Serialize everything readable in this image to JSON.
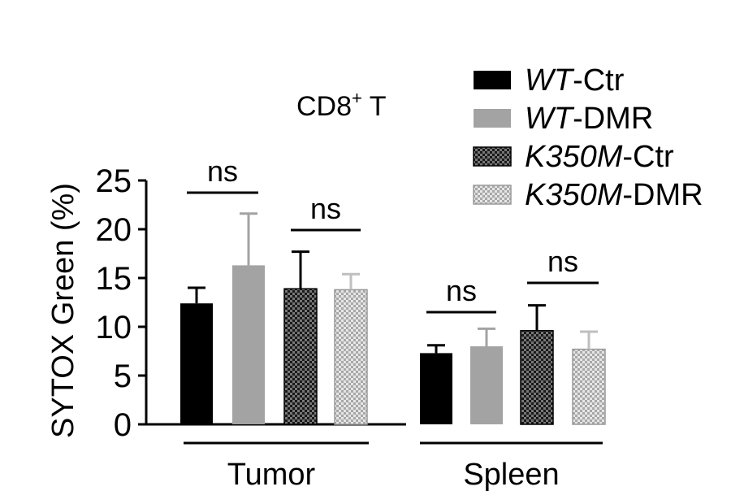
{
  "chart_data": {
    "type": "bar",
    "title": "CD8",
    "title_superscript": "+",
    "title_suffix": " T",
    "ylabel": "SYTOX Green (%)",
    "ylim": [
      0,
      25
    ],
    "yticks": [
      "0",
      "5",
      "10",
      "15",
      "20",
      "25"
    ],
    "groups": [
      "Tumor",
      "Spleen"
    ],
    "series": [
      {
        "name_italic": "WT",
        "name_rest": "-Ctr",
        "color": "#000000",
        "pattern": "solid",
        "values": [
          12.4,
          7.3
        ],
        "errors": [
          1.6,
          0.8
        ]
      },
      {
        "name_italic": "WT",
        "name_rest": "-DMR",
        "color": "#a3a3a3",
        "pattern": "solid",
        "values": [
          16.3,
          8.0
        ],
        "errors": [
          5.3,
          1.8
        ]
      },
      {
        "name_italic": "K350M",
        "name_rest": "-Ctr",
        "color": "#333333",
        "pattern": "checker-dark",
        "values": [
          13.9,
          9.6
        ],
        "errors": [
          3.8,
          2.6
        ]
      },
      {
        "name_italic": "K350M",
        "name_rest": "-DMR",
        "color": "#bfbfbf",
        "pattern": "checker-light",
        "values": [
          13.8,
          7.7
        ],
        "errors": [
          1.6,
          1.8
        ]
      }
    ],
    "significance": [
      {
        "group": 0,
        "from": 0,
        "to": 1,
        "label": "ns"
      },
      {
        "group": 0,
        "from": 2,
        "to": 3,
        "label": "ns"
      },
      {
        "group": 1,
        "from": 0,
        "to": 1,
        "label": "ns"
      },
      {
        "group": 1,
        "from": 2,
        "to": 3,
        "label": "ns"
      }
    ],
    "grid": false,
    "legend_position": "top-right"
  }
}
